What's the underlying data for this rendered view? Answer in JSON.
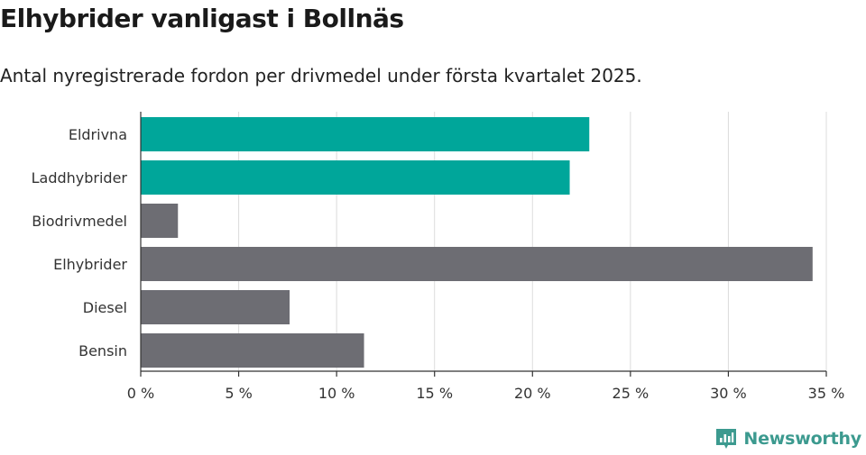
{
  "title": "Elhybrider vanligast i Bollnäs",
  "subtitle": "Antal nyregistrerade fordon per drivmedel under första kvartalet 2025.",
  "brand": {
    "name": "Newsworthy",
    "icon": "newsworthy-logo-icon"
  },
  "colors": {
    "highlight": "#00a69a",
    "default": "#6d6d73",
    "grid": "#dcdcdc",
    "axis": "#333333"
  },
  "chart_data": {
    "type": "bar",
    "orientation": "horizontal",
    "categories": [
      "Eldrivna",
      "Laddhybrider",
      "Biodrivmedel",
      "Elhybrider",
      "Diesel",
      "Bensin"
    ],
    "values": [
      22.9,
      21.9,
      1.9,
      34.3,
      7.6,
      11.4
    ],
    "highlighted": [
      true,
      true,
      false,
      false,
      false,
      false
    ],
    "xlim": [
      0,
      35
    ],
    "xticks": [
      0,
      5,
      10,
      15,
      20,
      25,
      30,
      35
    ],
    "xtick_labels": [
      "0 %",
      "5 %",
      "10 %",
      "15 %",
      "20 %",
      "25 %",
      "30 %",
      "35 %"
    ],
    "grid": true
  }
}
